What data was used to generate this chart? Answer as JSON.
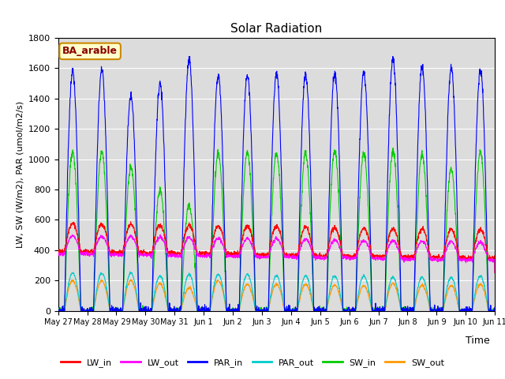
{
  "title": "Solar Radiation",
  "xlabel": "Time",
  "ylabel": "LW, SW (W/m2), PAR (umol/m2/s)",
  "site_label": "BA_arable",
  "ylim": [
    0,
    1800
  ],
  "n_days": 15,
  "colors": {
    "LW_in": "#ff0000",
    "LW_out": "#ff00ff",
    "PAR_in": "#0000ff",
    "PAR_out": "#00cccc",
    "SW_in": "#00cc00",
    "SW_out": "#ff9900"
  },
  "bg_color": "#dcdcdc",
  "tick_labels": [
    "May 27",
    "May 28",
    "May 29",
    "May 30",
    "May 31",
    "Jun 1",
    "Jun 2",
    "Jun 3",
    "Jun 4",
    "Jun 5",
    "Jun 6",
    "Jun 7",
    "Jun 8",
    "Jun 9",
    "Jun 10",
    "Jun 11"
  ],
  "yticks": [
    0,
    200,
    400,
    600,
    800,
    1000,
    1200,
    1400,
    1600,
    1800
  ],
  "par_in_peaks": [
    1580,
    1590,
    1420,
    1500,
    1660,
    1550,
    1560,
    1560,
    1560,
    1570,
    1570,
    1660,
    1610,
    1600,
    1590
  ],
  "par_out_peaks": [
    250,
    250,
    250,
    230,
    240,
    240,
    240,
    230,
    230,
    230,
    230,
    220,
    220,
    220,
    230
  ],
  "sw_in_peaks": [
    1050,
    1050,
    950,
    800,
    700,
    1040,
    1050,
    1040,
    1040,
    1050,
    1040,
    1050,
    1040,
    940,
    1050
  ],
  "sw_out_peaks": [
    200,
    200,
    200,
    180,
    150,
    200,
    175,
    175,
    175,
    170,
    165,
    180,
    170,
    165,
    175
  ],
  "lw_in_base": 390,
  "lw_out_base": 375,
  "lw_in_peak_amp": 185,
  "lw_out_peak_amp": 120,
  "lw_in_drift": 3,
  "lw_out_drift": 3
}
